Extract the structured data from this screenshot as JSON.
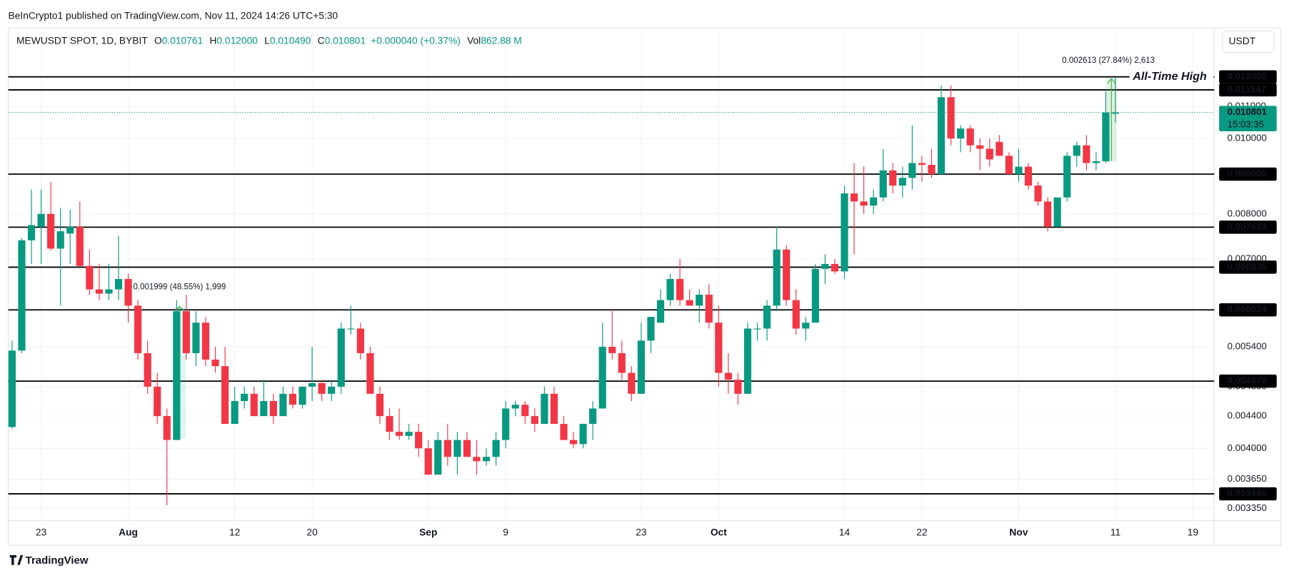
{
  "header": "BeInCrypto1 published on TradingView.com, Nov 11, 2024 14:26 UTC+5:30",
  "currency": "USDT",
  "footer": "TradingView",
  "chart_data": {
    "type": "candlestick",
    "title": "MEWUSDT SPOT, 1D, BYBIT",
    "legend": [
      {
        "key": "O",
        "value": "0.010761"
      },
      {
        "key": "H",
        "value": "0.012000"
      },
      {
        "key": "L",
        "value": "0.010490"
      },
      {
        "key": "C",
        "value": "0.010801"
      }
    ],
    "change": "+0.000040 (+0.37%)",
    "volume": {
      "key": "Vol",
      "value": "862.88 M"
    },
    "up_color": "#089981",
    "down_color": "#f23645",
    "log_scale": true,
    "grid": true,
    "xlim": [
      -0.4,
      124.2
    ],
    "xticks": [
      {
        "value": 3,
        "label": "23"
      },
      {
        "value": 12,
        "label": "Aug"
      },
      {
        "value": 23,
        "label": "12"
      },
      {
        "value": 31,
        "label": "20"
      },
      {
        "value": 43,
        "label": "Sep"
      },
      {
        "value": 51,
        "label": "9"
      },
      {
        "value": 65,
        "label": "23"
      },
      {
        "value": 73,
        "label": "Oct"
      },
      {
        "value": 86,
        "label": "14"
      },
      {
        "value": 94,
        "label": "22"
      },
      {
        "value": 104,
        "label": "Nov"
      },
      {
        "value": 114,
        "label": "11"
      },
      {
        "value": 122,
        "label": "19"
      }
    ],
    "ylim": [
      0.00323,
      0.0129
    ],
    "yticks": [
      {
        "value": 0.00335,
        "label": "0.003350"
      },
      {
        "value": 0.00365,
        "label": "0.003650"
      },
      {
        "value": 0.004,
        "label": "0.004000"
      },
      {
        "value": 0.0044,
        "label": "0.004400"
      },
      {
        "value": 0.0048,
        "label": "0.004800"
      },
      {
        "value": 0.0054,
        "label": "0.005400"
      },
      {
        "value": 0.007,
        "label": "0.007000"
      },
      {
        "value": 0.008,
        "label": "0.008000"
      },
      {
        "value": 0.01,
        "label": "0.010000"
      },
      {
        "value": 0.011,
        "label": "0.011000"
      }
    ],
    "open": [
      0.00426,
      0.00534,
      0.0074,
      0.0077,
      0.008,
      0.00722,
      0.00755,
      0.0077,
      0.00686,
      0.0064,
      0.00632,
      0.0064,
      0.0066,
      0.0061,
      0.0053,
      0.0048,
      0.0044,
      0.0041,
      0.006,
      0.0053,
      0.0058,
      0.0052,
      0.0051,
      0.0043,
      0.0046,
      0.0047,
      0.0044,
      0.0046,
      0.0044,
      0.0047,
      0.00455,
      0.0048,
      0.00485,
      0.0047,
      0.0048,
      0.0057,
      0.0057,
      0.0053,
      0.0047,
      0.0044,
      0.0042,
      0.00415,
      0.0042,
      0.004,
      0.0037,
      0.0041,
      0.0039,
      0.0041,
      0.0039,
      0.00385,
      0.0039,
      0.0041,
      0.0045,
      0.00455,
      0.0044,
      0.0043,
      0.0047,
      0.0043,
      0.0041,
      0.00405,
      0.0043,
      0.0045,
      0.0054,
      0.0053,
      0.005,
      0.0047,
      0.0055,
      0.0058,
      0.0062,
      0.0066,
      0.0062,
      0.0061,
      0.0063,
      0.0058,
      0.005,
      0.0049,
      0.0047,
      0.0057,
      0.0057,
      0.0061,
      0.0072,
      0.0062,
      0.0057,
      0.0058,
      0.0068,
      0.0069,
      0.00675,
      0.0085,
      0.0083,
      0.0082,
      0.0084,
      0.0091,
      0.0087,
      0.0089,
      0.0093,
      0.00925,
      0.009,
      0.0113,
      0.01,
      0.0103,
      0.0098,
      0.0097,
      0.0099,
      0.0095,
      0.009,
      0.0092,
      0.0087,
      0.0083,
      0.0077,
      0.0084,
      0.0095,
      0.0098,
      0.0093,
      0.00935,
      0.010761
    ],
    "high": [
      0.0055,
      0.00745,
      0.0086,
      0.0086,
      0.0088,
      0.00815,
      0.0081,
      0.0083,
      0.0072,
      0.0069,
      0.0069,
      0.0075,
      0.0067,
      0.0062,
      0.0055,
      0.005,
      0.0045,
      0.0062,
      0.0063,
      0.006,
      0.0059,
      0.0054,
      0.0054,
      0.0048,
      0.0048,
      0.0048,
      0.0049,
      0.0047,
      0.0048,
      0.0048,
      0.0048,
      0.0054,
      0.0049,
      0.0049,
      0.0058,
      0.0061,
      0.0058,
      0.0054,
      0.0048,
      0.0045,
      0.0045,
      0.0043,
      0.0043,
      0.0041,
      0.0042,
      0.0043,
      0.0042,
      0.0042,
      0.0041,
      0.004,
      0.0042,
      0.0046,
      0.0046,
      0.0046,
      0.0045,
      0.0048,
      0.0048,
      0.0044,
      0.0042,
      0.0043,
      0.0046,
      0.0058,
      0.006,
      0.0055,
      0.0051,
      0.0058,
      0.0059,
      0.0064,
      0.0067,
      0.007,
      0.0064,
      0.0064,
      0.0065,
      0.0061,
      0.0053,
      0.005,
      0.0058,
      0.0058,
      0.0062,
      0.0077,
      0.0073,
      0.0064,
      0.0059,
      0.0069,
      0.0071,
      0.007,
      0.0087,
      0.0093,
      0.0092,
      0.0086,
      0.0097,
      0.0093,
      0.0092,
      0.0104,
      0.0095,
      0.0097,
      0.0117,
      0.0117,
      0.0104,
      0.0104,
      0.01,
      0.01,
      0.0101,
      0.0096,
      0.0097,
      0.0093,
      0.0088,
      0.0084,
      0.0084,
      0.0096,
      0.0099,
      0.0101,
      0.0096,
      0.0115,
      0.012
    ],
    "low": [
      0.00424,
      0.0053,
      0.0069,
      0.0069,
      0.00718,
      0.0061,
      0.0069,
      0.00685,
      0.0063,
      0.0062,
      0.0062,
      0.0062,
      0.0058,
      0.0052,
      0.0047,
      0.0043,
      0.00338,
      0.0041,
      0.0052,
      0.0051,
      0.0051,
      0.005,
      0.0043,
      0.0043,
      0.0045,
      0.0044,
      0.0044,
      0.0043,
      0.0044,
      0.0045,
      0.0045,
      0.0046,
      0.0046,
      0.0046,
      0.0047,
      0.0056,
      0.0052,
      0.0047,
      0.0043,
      0.0041,
      0.0041,
      0.0041,
      0.0039,
      0.0037,
      0.0037,
      0.0038,
      0.0037,
      0.0039,
      0.0037,
      0.0038,
      0.0038,
      0.004,
      0.0044,
      0.0043,
      0.0042,
      0.0043,
      0.0043,
      0.0041,
      0.004,
      0.004,
      0.0041,
      0.0045,
      0.0052,
      0.0049,
      0.0046,
      0.0047,
      0.0053,
      0.0058,
      0.0061,
      0.0061,
      0.0061,
      0.0058,
      0.0057,
      0.0048,
      0.0047,
      0.00455,
      0.0047,
      0.0055,
      0.0055,
      0.006,
      0.0061,
      0.0056,
      0.0055,
      0.0058,
      0.0065,
      0.0067,
      0.0066,
      0.0071,
      0.008,
      0.008,
      0.0083,
      0.0085,
      0.0084,
      0.0086,
      0.0088,
      0.0089,
      0.009,
      0.0098,
      0.0096,
      0.0096,
      0.0091,
      0.0092,
      0.0095,
      0.009,
      0.0088,
      0.0086,
      0.0082,
      0.0076,
      0.0077,
      0.0083,
      0.0092,
      0.0091,
      0.0091,
      0.0093,
      0.01049
    ],
    "close": [
      0.00534,
      0.0074,
      0.00774,
      0.008,
      0.00722,
      0.0076,
      0.0077,
      0.00686,
      0.0064,
      0.00632,
      0.0064,
      0.0066,
      0.0061,
      0.0053,
      0.0048,
      0.0044,
      0.0041,
      0.006,
      0.0053,
      0.0058,
      0.0052,
      0.0051,
      0.0043,
      0.0046,
      0.0047,
      0.0044,
      0.0046,
      0.0044,
      0.0047,
      0.00455,
      0.0048,
      0.00485,
      0.0047,
      0.0048,
      0.0057,
      0.0057,
      0.0053,
      0.0047,
      0.0044,
      0.0042,
      0.00415,
      0.0042,
      0.004,
      0.0037,
      0.0041,
      0.0039,
      0.0041,
      0.0039,
      0.00385,
      0.0039,
      0.0041,
      0.0045,
      0.00455,
      0.0044,
      0.0043,
      0.0047,
      0.0043,
      0.0041,
      0.00405,
      0.0043,
      0.0045,
      0.0054,
      0.0053,
      0.005,
      0.0047,
      0.0055,
      0.0059,
      0.0062,
      0.0066,
      0.0062,
      0.0061,
      0.0063,
      0.0058,
      0.005,
      0.0049,
      0.0047,
      0.0057,
      0.0057,
      0.0061,
      0.0072,
      0.0062,
      0.0057,
      0.0058,
      0.0068,
      0.0069,
      0.00675,
      0.0085,
      0.0083,
      0.0082,
      0.0084,
      0.0091,
      0.0087,
      0.0089,
      0.0093,
      0.00925,
      0.009,
      0.0113,
      0.01,
      0.0103,
      0.0098,
      0.0097,
      0.0094,
      0.0095,
      0.009,
      0.0092,
      0.0087,
      0.0083,
      0.0077,
      0.0084,
      0.0095,
      0.0098,
      0.0093,
      0.00935,
      0.0108,
      0.010801
    ],
    "levels": [
      {
        "value": 0.012,
        "label": "0.012000"
      },
      {
        "value": 0.011547,
        "label": "0.011547"
      },
      {
        "value": 0.009,
        "label": "0.009000"
      },
      {
        "value": 0.007693,
        "label": "0.007693"
      },
      {
        "value": 0.006835,
        "label": "0.006835"
      },
      {
        "value": 0.006024,
        "label": "0.006024"
      },
      {
        "value": 0.004879,
        "label": "0.004879"
      },
      {
        "value": 0.003496,
        "label": "0.003496"
      }
    ],
    "last_price": {
      "value": 0.010801,
      "label": "0.010801"
    },
    "countdown": "15:03:35",
    "ath_label": "All-Time High",
    "measures": [
      "0.001999 (48.55%) 1,999",
      "0.002613 (27.84%) 2,613"
    ]
  }
}
